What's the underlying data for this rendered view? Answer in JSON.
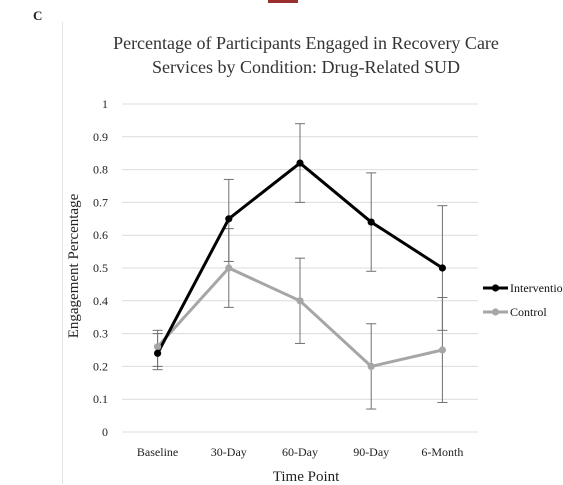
{
  "panel_label": "C",
  "chart_data": {
    "type": "line",
    "title_lines": [
      "Percentage of Participants Engaged in Recovery Care",
      "Services by Condition: Drug-Related SUD"
    ],
    "xlabel": "Time Point",
    "ylabel": "Engagement Percentage",
    "categories": [
      "Baseline",
      "30-Day",
      "60-Day",
      "90-Day",
      "6-Month"
    ],
    "ylim": [
      0,
      1
    ],
    "yticks": [
      0,
      0.1,
      0.2,
      0.3,
      0.4,
      0.5,
      0.6,
      0.7,
      0.8,
      0.9,
      1
    ],
    "ytick_labels": [
      "0",
      "0.1",
      "0.2",
      "0.3",
      "0.4",
      "0.5",
      "0.6",
      "0.7",
      "0.8",
      "0.9",
      "1"
    ],
    "grid": true,
    "legend_position": "right",
    "series": [
      {
        "name": "Interventio",
        "color": "#000000",
        "values": [
          0.24,
          0.65,
          0.82,
          0.64,
          0.5
        ],
        "err_low": [
          0.19,
          0.52,
          0.7,
          0.49,
          0.31
        ],
        "err_high": [
          0.3,
          0.77,
          0.94,
          0.79,
          0.69
        ]
      },
      {
        "name": "Control",
        "color": "#a6a6a6",
        "values": [
          0.26,
          0.5,
          0.4,
          0.2,
          0.25
        ],
        "err_low": [
          0.2,
          0.38,
          0.27,
          0.07,
          0.09
        ],
        "err_high": [
          0.31,
          0.62,
          0.53,
          0.33,
          0.41
        ]
      }
    ]
  }
}
